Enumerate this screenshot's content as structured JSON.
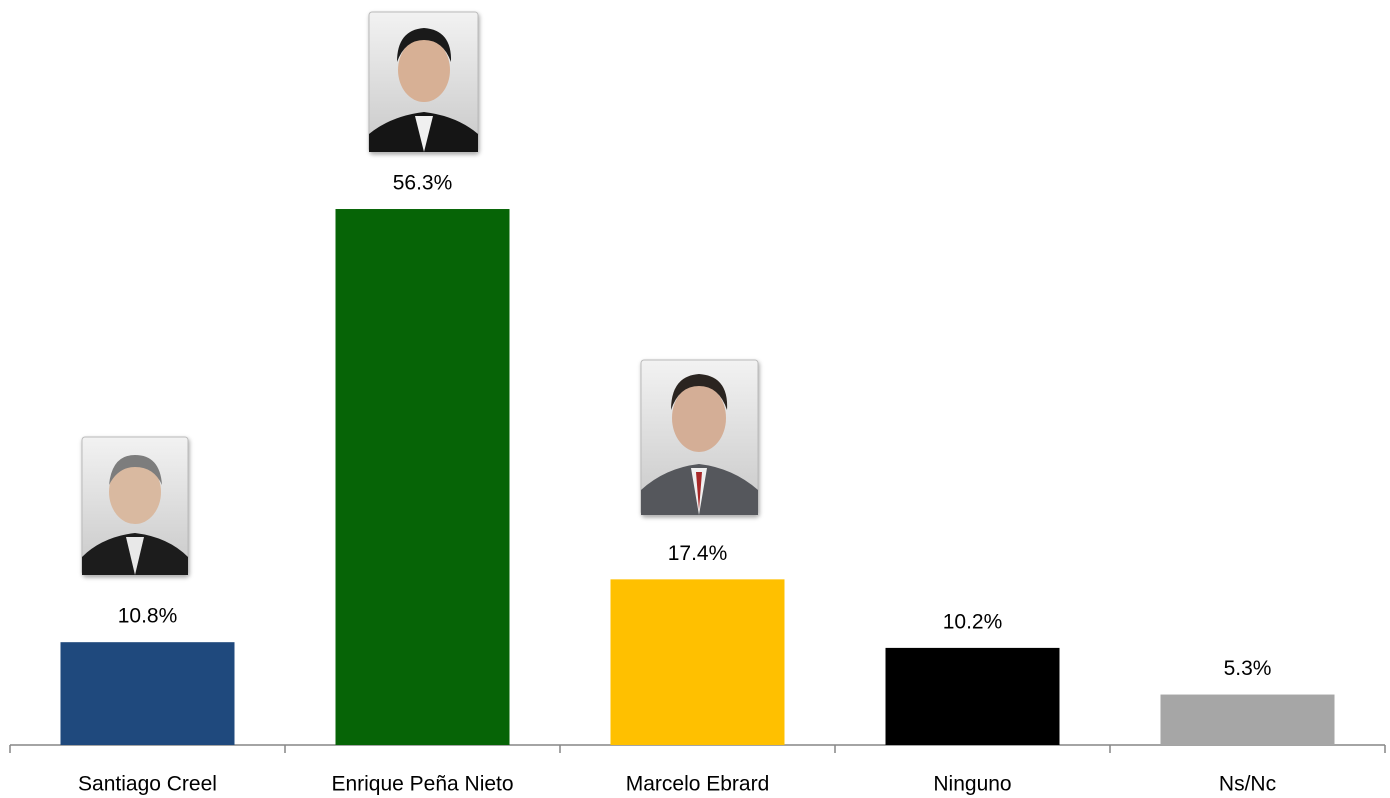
{
  "chart_data": {
    "type": "bar",
    "categories": [
      "Santiago Creel",
      "Enrique Peña Nieto",
      "Marcelo Ebrard",
      "Ninguno",
      "Ns/Nc"
    ],
    "values": [
      10.8,
      56.3,
      17.4,
      10.2,
      5.3
    ],
    "value_labels": [
      "10.8%",
      "56.3%",
      "17.4%",
      "10.2%",
      "5.3%"
    ],
    "colors": [
      "#1f497d",
      "#066406",
      "#ffc000",
      "#000000",
      "#a6a6a6"
    ]
  }
}
